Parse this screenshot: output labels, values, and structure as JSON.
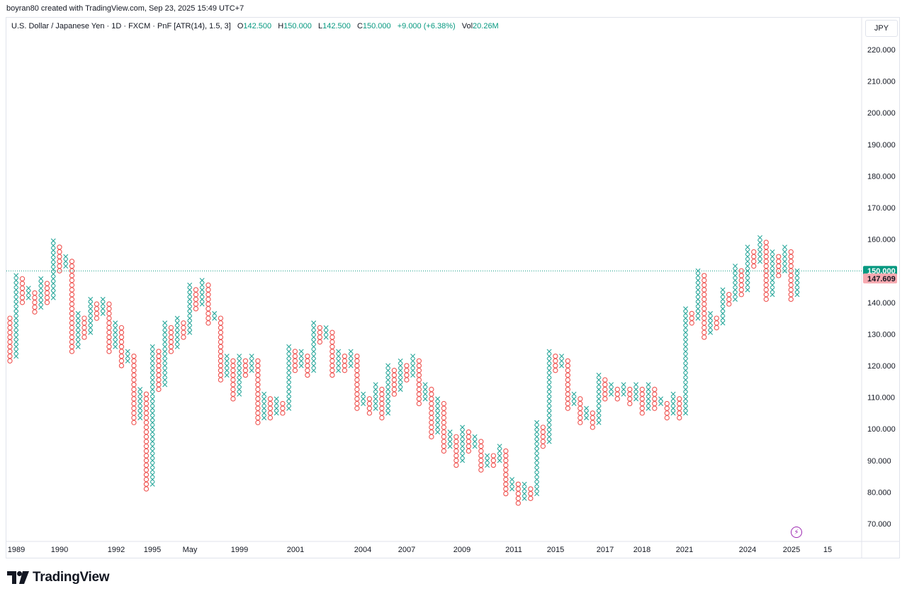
{
  "caption": "boyran80 created with TradingView.com, Sep 23, 2025 15:49 UTC+7",
  "legend": {
    "symbol": "U.S. Dollar / Japanese Yen · 1D · FXCM · PnF [ATR(14), 1.5, 3]",
    "o_label": "O",
    "o_value": "142.500",
    "h_label": "H",
    "h_value": "150.000",
    "l_label": "L",
    "l_value": "142.500",
    "c_label": "C",
    "c_value": "150.000",
    "change": "+9.000 (+6.38%)",
    "vol_label": "Vol",
    "vol_value": "20.26M"
  },
  "currency_button": "JPY",
  "brand": "TradingView",
  "colors": {
    "up": "#26a69a",
    "down": "#ef5350",
    "last": "#089981",
    "prev": "#f7525f"
  },
  "chart_data": {
    "type": "point_and_figure",
    "y_axis": {
      "min": 65,
      "max": 225,
      "ticks": [
        "70.000",
        "80.000",
        "90.000",
        "100.000",
        "110.000",
        "120.000",
        "130.000",
        "140.000",
        "150.000",
        "160.000",
        "170.000",
        "180.000",
        "190.000",
        "200.000",
        "210.000",
        "220.000"
      ]
    },
    "x_labels": [
      "1989",
      "1990",
      "1992",
      "1995",
      "May",
      "1999",
      "2001",
      "2004",
      "2007",
      "2009",
      "2011",
      "2015",
      "2017",
      "2018",
      "2021",
      "2024",
      "2025",
      "15"
    ],
    "price_labels": [
      {
        "value": 150.0,
        "text": "150.000",
        "kind": "last"
      },
      {
        "value": 147.609,
        "text": "147.609",
        "kind": "prev"
      }
    ],
    "columns": [
      {
        "t": "O",
        "lo": 121.5,
        "hi": 135.0
      },
      {
        "t": "X",
        "lo": 123.0,
        "hi": 148.5
      },
      {
        "t": "O",
        "lo": 140.0,
        "hi": 147.0
      },
      {
        "t": "X",
        "lo": 141.5,
        "hi": 145.0
      },
      {
        "t": "O",
        "lo": 137.0,
        "hi": 143.5
      },
      {
        "t": "X",
        "lo": 138.5,
        "hi": 147.0
      },
      {
        "t": "O",
        "lo": 140.0,
        "hi": 145.5
      },
      {
        "t": "X",
        "lo": 141.5,
        "hi": 159.0
      },
      {
        "t": "O",
        "lo": 150.0,
        "hi": 157.5
      },
      {
        "t": "X",
        "lo": 151.5,
        "hi": 154.0
      },
      {
        "t": "O",
        "lo": 124.5,
        "hi": 152.5
      },
      {
        "t": "X",
        "lo": 126.0,
        "hi": 136.0
      },
      {
        "t": "O",
        "lo": 129.0,
        "hi": 134.5
      },
      {
        "t": "X",
        "lo": 130.5,
        "hi": 141.5
      },
      {
        "t": "O",
        "lo": 135.0,
        "hi": 140.0
      },
      {
        "t": "X",
        "lo": 136.5,
        "hi": 141.5
      },
      {
        "t": "O",
        "lo": 124.5,
        "hi": 140.0
      },
      {
        "t": "X",
        "lo": 126.0,
        "hi": 134.0
      },
      {
        "t": "O",
        "lo": 120.0,
        "hi": 132.5
      },
      {
        "t": "X",
        "lo": 121.5,
        "hi": 124.5
      },
      {
        "t": "O",
        "lo": 102.0,
        "hi": 123.0
      },
      {
        "t": "X",
        "lo": 103.5,
        "hi": 112.5
      },
      {
        "t": "O",
        "lo": 81.0,
        "hi": 111.0
      },
      {
        "t": "X",
        "lo": 82.5,
        "hi": 126.0
      },
      {
        "t": "O",
        "lo": 112.5,
        "hi": 124.5
      },
      {
        "t": "X",
        "lo": 114.0,
        "hi": 133.5
      },
      {
        "t": "O",
        "lo": 124.5,
        "hi": 132.0
      },
      {
        "t": "X",
        "lo": 126.0,
        "hi": 135.0
      },
      {
        "t": "O",
        "lo": 129.0,
        "hi": 133.5
      },
      {
        "t": "X",
        "lo": 130.5,
        "hi": 145.5
      },
      {
        "t": "O",
        "lo": 138.0,
        "hi": 144.0
      },
      {
        "t": "X",
        "lo": 139.5,
        "hi": 147.0
      },
      {
        "t": "O",
        "lo": 133.5,
        "hi": 145.5
      },
      {
        "t": "X",
        "lo": 135.0,
        "hi": 137.0
      },
      {
        "t": "O",
        "lo": 115.5,
        "hi": 135.0
      },
      {
        "t": "X",
        "lo": 117.0,
        "hi": 123.0
      },
      {
        "t": "O",
        "lo": 109.5,
        "hi": 121.5
      },
      {
        "t": "X",
        "lo": 111.0,
        "hi": 123.0
      },
      {
        "t": "O",
        "lo": 117.0,
        "hi": 121.5
      },
      {
        "t": "X",
        "lo": 118.5,
        "hi": 123.0
      },
      {
        "t": "O",
        "lo": 102.0,
        "hi": 121.5
      },
      {
        "t": "X",
        "lo": 103.5,
        "hi": 111.0
      },
      {
        "t": "O",
        "lo": 103.5,
        "hi": 109.5
      },
      {
        "t": "X",
        "lo": 105.0,
        "hi": 109.5
      },
      {
        "t": "O",
        "lo": 105.0,
        "hi": 108.0
      },
      {
        "t": "X",
        "lo": 106.5,
        "hi": 126.0
      },
      {
        "t": "O",
        "lo": 118.5,
        "hi": 124.5
      },
      {
        "t": "X",
        "lo": 120.0,
        "hi": 124.5
      },
      {
        "t": "O",
        "lo": 117.0,
        "hi": 123.0
      },
      {
        "t": "X",
        "lo": 118.5,
        "hi": 133.5
      },
      {
        "t": "O",
        "lo": 127.5,
        "hi": 132.0
      },
      {
        "t": "X",
        "lo": 129.0,
        "hi": 132.0
      },
      {
        "t": "O",
        "lo": 117.0,
        "hi": 130.5
      },
      {
        "t": "X",
        "lo": 118.5,
        "hi": 124.5
      },
      {
        "t": "O",
        "lo": 118.5,
        "hi": 123.0
      },
      {
        "t": "X",
        "lo": 120.0,
        "hi": 124.5
      },
      {
        "t": "O",
        "lo": 106.5,
        "hi": 123.0
      },
      {
        "t": "X",
        "lo": 108.0,
        "hi": 111.0
      },
      {
        "t": "O",
        "lo": 105.0,
        "hi": 109.5
      },
      {
        "t": "X",
        "lo": 106.5,
        "hi": 114.0
      },
      {
        "t": "O",
        "lo": 103.5,
        "hi": 112.5
      },
      {
        "t": "X",
        "lo": 105.0,
        "hi": 120.0
      },
      {
        "t": "O",
        "lo": 111.0,
        "hi": 118.5
      },
      {
        "t": "X",
        "lo": 112.5,
        "hi": 121.5
      },
      {
        "t": "O",
        "lo": 115.5,
        "hi": 120.0
      },
      {
        "t": "X",
        "lo": 117.0,
        "hi": 123.0
      },
      {
        "t": "O",
        "lo": 108.0,
        "hi": 121.5
      },
      {
        "t": "X",
        "lo": 109.5,
        "hi": 114.0
      },
      {
        "t": "O",
        "lo": 97.5,
        "hi": 112.5
      },
      {
        "t": "X",
        "lo": 99.0,
        "hi": 109.5
      },
      {
        "t": "O",
        "lo": 93.0,
        "hi": 108.0
      },
      {
        "t": "X",
        "lo": 94.5,
        "hi": 99.0
      },
      {
        "t": "O",
        "lo": 88.5,
        "hi": 97.5
      },
      {
        "t": "X",
        "lo": 90.0,
        "hi": 100.5
      },
      {
        "t": "O",
        "lo": 93.0,
        "hi": 99.0
      },
      {
        "t": "X",
        "lo": 94.5,
        "hi": 97.5
      },
      {
        "t": "O",
        "lo": 87.0,
        "hi": 96.0
      },
      {
        "t": "X",
        "lo": 88.5,
        "hi": 91.5
      },
      {
        "t": "O",
        "lo": 88.5,
        "hi": 91.5
      },
      {
        "t": "X",
        "lo": 90.0,
        "hi": 94.5
      },
      {
        "t": "O",
        "lo": 79.5,
        "hi": 93.0
      },
      {
        "t": "X",
        "lo": 81.0,
        "hi": 84.0
      },
      {
        "t": "O",
        "lo": 76.5,
        "hi": 82.5
      },
      {
        "t": "X",
        "lo": 78.0,
        "hi": 82.5
      },
      {
        "t": "O",
        "lo": 78.0,
        "hi": 81.0
      },
      {
        "t": "X",
        "lo": 79.5,
        "hi": 102.0
      },
      {
        "t": "O",
        "lo": 94.5,
        "hi": 100.5
      },
      {
        "t": "X",
        "lo": 96.0,
        "hi": 124.5
      },
      {
        "t": "O",
        "lo": 118.5,
        "hi": 123.0
      },
      {
        "t": "X",
        "lo": 120.0,
        "hi": 123.0
      },
      {
        "t": "O",
        "lo": 106.5,
        "hi": 121.5
      },
      {
        "t": "X",
        "lo": 108.0,
        "hi": 111.0
      },
      {
        "t": "O",
        "lo": 102.0,
        "hi": 109.5
      },
      {
        "t": "X",
        "lo": 103.5,
        "hi": 106.5
      },
      {
        "t": "O",
        "lo": 100.5,
        "hi": 105.0
      },
      {
        "t": "X",
        "lo": 102.0,
        "hi": 117.0
      },
      {
        "t": "O",
        "lo": 109.5,
        "hi": 115.5
      },
      {
        "t": "X",
        "lo": 111.0,
        "hi": 114.0
      },
      {
        "t": "O",
        "lo": 109.5,
        "hi": 112.5
      },
      {
        "t": "X",
        "lo": 111.0,
        "hi": 114.0
      },
      {
        "t": "O",
        "lo": 108.0,
        "hi": 112.5
      },
      {
        "t": "X",
        "lo": 109.5,
        "hi": 114.0
      },
      {
        "t": "O",
        "lo": 105.0,
        "hi": 112.5
      },
      {
        "t": "X",
        "lo": 106.5,
        "hi": 114.0
      },
      {
        "t": "O",
        "lo": 106.5,
        "hi": 112.5
      },
      {
        "t": "X",
        "lo": 108.0,
        "hi": 109.5
      },
      {
        "t": "O",
        "lo": 103.5,
        "hi": 108.0
      },
      {
        "t": "X",
        "lo": 105.0,
        "hi": 111.0
      },
      {
        "t": "O",
        "lo": 103.5,
        "hi": 109.5
      },
      {
        "t": "X",
        "lo": 105.0,
        "hi": 138.0
      },
      {
        "t": "O",
        "lo": 133.5,
        "hi": 136.5
      },
      {
        "t": "X",
        "lo": 135.0,
        "hi": 150.0
      },
      {
        "t": "O",
        "lo": 129.0,
        "hi": 148.5
      },
      {
        "t": "X",
        "lo": 130.5,
        "hi": 136.5
      },
      {
        "t": "O",
        "lo": 132.0,
        "hi": 135.0
      },
      {
        "t": "X",
        "lo": 133.5,
        "hi": 144.0
      },
      {
        "t": "O",
        "lo": 139.5,
        "hi": 142.5
      },
      {
        "t": "X",
        "lo": 141.0,
        "hi": 151.5
      },
      {
        "t": "O",
        "lo": 142.5,
        "hi": 150.0
      },
      {
        "t": "X",
        "lo": 144.0,
        "hi": 157.5
      },
      {
        "t": "O",
        "lo": 151.5,
        "hi": 156.0
      },
      {
        "t": "X",
        "lo": 153.0,
        "hi": 160.5
      },
      {
        "t": "O",
        "lo": 141.0,
        "hi": 159.0
      },
      {
        "t": "X",
        "lo": 142.5,
        "hi": 156.0
      },
      {
        "t": "O",
        "lo": 148.5,
        "hi": 154.5
      },
      {
        "t": "X",
        "lo": 150.0,
        "hi": 157.5
      },
      {
        "t": "O",
        "lo": 141.0,
        "hi": 156.0
      },
      {
        "t": "X",
        "lo": 142.5,
        "hi": 150.0
      }
    ]
  }
}
